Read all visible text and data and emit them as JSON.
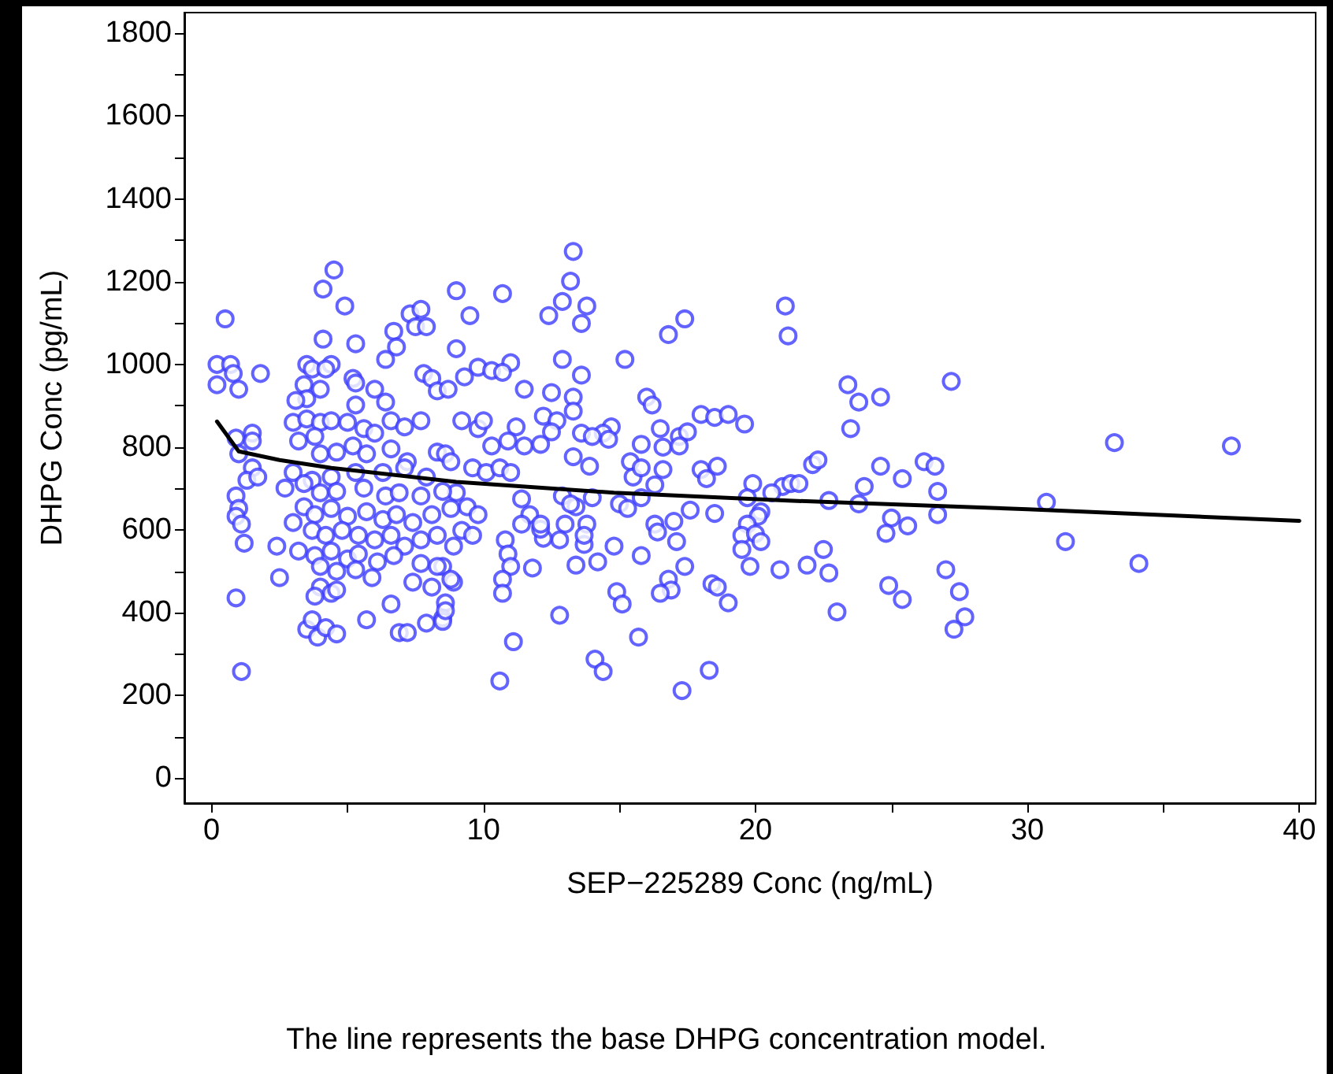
{
  "chart_data": {
    "type": "scatter",
    "xlabel": "SEP−225289 Conc (ng/mL)",
    "ylabel": "DHPG Conc (pg/mL)",
    "annotations": [
      "The line represents the base DHPG concentration model."
    ],
    "xlim": [
      -1,
      40.6
    ],
    "ylim": [
      -60,
      1850
    ],
    "xticks": [
      0,
      {
        "value": 5,
        "label": null
      },
      10,
      {
        "value": 15,
        "label": null
      },
      20,
      {
        "value": 25,
        "label": null
      },
      30,
      {
        "value": 35,
        "label": null
      },
      40
    ],
    "yticks": [
      0,
      {
        "value": 100,
        "label": null
      },
      200,
      {
        "value": 300,
        "label": null
      },
      400,
      {
        "value": 500,
        "label": null
      },
      600,
      {
        "value": 700,
        "label": null
      },
      800,
      {
        "value": 900,
        "label": null
      },
      1000,
      {
        "value": 1100,
        "label": null
      },
      1200,
      {
        "value": 1300,
        "label": null
      },
      1400,
      {
        "value": 1500,
        "label": null
      },
      1600,
      {
        "value": 1700,
        "label": null
      },
      1800
    ],
    "marker": "circle",
    "series": [
      {
        "color": "#3c3cff",
        "x": [
          21.1,
          21.2,
          23.4,
          23.8,
          24.6,
          23.5,
          27.2,
          33.2,
          37.5,
          30.7,
          31.4,
          34.1,
          24.6,
          25.4,
          26.2,
          26.6,
          26.7,
          26.7,
          24.0,
          23.8,
          25.0,
          24.8,
          25.6,
          22.7,
          22.1,
          22.3,
          21.0,
          21.3,
          21.6,
          22.5,
          21.9,
          22.7,
          20.9,
          23.0,
          24.9,
          25.4,
          27.0,
          27.5,
          27.7,
          27.3,
          13.3,
          13.2,
          12.9,
          13.8,
          12.4,
          13.6,
          10.7,
          9.0,
          9.5,
          9.0,
          17.4,
          16.8,
          12.9,
          15.2,
          13.6,
          11.0,
          9.8,
          10.3,
          10.7,
          9.3,
          11.5,
          12.5,
          13.3,
          13.3,
          16.0,
          16.2,
          18.0,
          18.5,
          19.0,
          19.6,
          16.5,
          17.2,
          17.5,
          14.7,
          14.4,
          14.6,
          13.6,
          14.0,
          12.2,
          12.7,
          12.5,
          11.2,
          15.8,
          16.6,
          17.2,
          13.3,
          13.9,
          15.4,
          15.5,
          15.8,
          16.6,
          18.0,
          18.2,
          18.6,
          19.9,
          16.3,
          15.0,
          15.3,
          15.8,
          12.9,
          13.4,
          13.2,
          14.0,
          17.6,
          18.5,
          19.7,
          20.2,
          20.6,
          20.1,
          19.7,
          19.5,
          20.0,
          20.2,
          19.5,
          16.3,
          16.4,
          17.0,
          17.1,
          15.8,
          17.4,
          19.8,
          14.8,
          14.2,
          13.4,
          13.0,
          13.8,
          13.7,
          13.7,
          11.8,
          12.8,
          12.2,
          12.1,
          10.8,
          10.9,
          11.0,
          10.7,
          10.7,
          16.8,
          16.9,
          16.5,
          14.9,
          15.1,
          18.4,
          18.6,
          19.0,
          12.8,
          11.1,
          15.7,
          14.1,
          14.4,
          10.6,
          17.3,
          18.3,
          9.2,
          9.8,
          10.0,
          10.3,
          10.9,
          11.5,
          12.1,
          9.6,
          10.1,
          10.6,
          11.0,
          9.0,
          9.4,
          9.8,
          9.2,
          9.6,
          11.4,
          11.7,
          12.1,
          11.4,
          8.9,
          8.5,
          8.9,
          8.6,
          8.5,
          0.5,
          0.2,
          0.7,
          0.2,
          0.8,
          1.0,
          1.8,
          0.9,
          1.5,
          1.5,
          1.0,
          1.5,
          1.3,
          1.7,
          0.9,
          1.0,
          0.9,
          1.1,
          1.2,
          0.9,
          1.1,
          4.5,
          4.1,
          4.9,
          4.1,
          5.3,
          6.7,
          6.8,
          7.3,
          7.7,
          7.5,
          7.9,
          6.4,
          3.5,
          3.7,
          4.4,
          4.2,
          3.4,
          3.5,
          4.0,
          3.1,
          5.2,
          5.3,
          5.3,
          6.0,
          6.4,
          7.8,
          8.1,
          8.3,
          8.7,
          3.0,
          3.5,
          4.0,
          3.8,
          4.4,
          5.0,
          5.6,
          6.0,
          6.6,
          7.1,
          7.7,
          3.2,
          4.0,
          4.6,
          5.2,
          5.7,
          6.6,
          7.2,
          8.3,
          8.6,
          8.8,
          3.0,
          3.7,
          4.4,
          5.3,
          6.3,
          7.1,
          7.9,
          2.7,
          3.4,
          4.0,
          4.6,
          5.6,
          6.4,
          6.9,
          7.7,
          8.5,
          3.4,
          3.8,
          4.4,
          5.0,
          5.7,
          6.3,
          6.8,
          7.4,
          8.1,
          8.8,
          3.0,
          3.7,
          4.2,
          4.8,
          5.4,
          6.0,
          6.6,
          7.1,
          7.7,
          8.3,
          2.4,
          3.2,
          3.8,
          4.4,
          5.0,
          5.4,
          6.1,
          6.7,
          4.0,
          4.6,
          5.3,
          5.9,
          7.7,
          8.3,
          8.8,
          2.5,
          4.0,
          4.4,
          6.6,
          7.4,
          8.1,
          3.8,
          4.6,
          3.5,
          3.7,
          3.9,
          4.2,
          4.6,
          5.7,
          6.9,
          7.2,
          7.9,
          8.5,
          8.6
        ],
        "values": [
          1141,
          1069,
          951,
          909,
          921,
          845,
          959,
          811,
          803,
          667,
          572,
          519,
          754,
          724,
          765,
          754,
          693,
          637,
          705,
          663,
          629,
          592,
          610,
          671,
          758,
          769,
          705,
          712,
          712,
          553,
          515,
          496,
          504,
          402,
          466,
          432,
          504,
          451,
          390,
          360,
          1273,
          1201,
          1152,
          1141,
          1118,
          1099,
          1171,
          1178,
          1118,
          1038,
          1110,
          1072,
          1012,
          1012,
          974,
          1004,
          993,
          985,
          981,
          970,
          940,
          932,
          921,
          887,
          921,
          902,
          879,
          872,
          879,
          856,
          845,
          826,
          837,
          849,
          834,
          819,
          834,
          826,
          875,
          864,
          837,
          849,
          807,
          800,
          803,
          777,
          754,
          765,
          728,
          750,
          746,
          746,
          724,
          754,
          712,
          709,
          663,
          652,
          678,
          682,
          656,
          663,
          678,
          648,
          640,
          678,
          644,
          690,
          633,
          614,
          587,
          591,
          572,
          553,
          614,
          595,
          621,
          572,
          538,
          512,
          512,
          561,
          523,
          515,
          614,
          614,
          565,
          587,
          508,
          576,
          580,
          602,
          576,
          542,
          512,
          481,
          447,
          481,
          455,
          447,
          451,
          421,
          470,
          462,
          424,
          394,
          330,
          341,
          288,
          258,
          235,
          212,
          261,
          864,
          845,
          864,
          803,
          815,
          803,
          807,
          750,
          739,
          750,
          739,
          690,
          656,
          637,
          599,
          587,
          675,
          637,
          614,
          614,
          561,
          512,
          474,
          424,
          387,
          1110,
          1000,
          1000,
          951,
          978,
          940,
          978,
          822,
          834,
          815,
          784,
          750,
          720,
          728,
          682,
          652,
          633,
          614,
          568,
          436,
          258,
          1228,
          1182,
          1141,
          1061,
          1050,
          1080,
          1042,
          1122,
          1133,
          1091,
          1091,
          1012,
          1000,
          989,
          1000,
          989,
          951,
          917,
          940,
          913,
          966,
          955,
          902,
          940,
          909,
          978,
          966,
          936,
          940,
          860,
          868,
          860,
          826,
          864,
          860,
          845,
          834,
          864,
          849,
          864,
          815,
          784,
          788,
          803,
          784,
          796,
          765,
          788,
          784,
          765,
          739,
          720,
          728,
          739,
          739,
          750,
          728,
          701,
          712,
          690,
          693,
          701,
          682,
          690,
          682,
          693,
          656,
          637,
          652,
          633,
          644,
          625,
          637,
          618,
          637,
          652,
          618,
          599,
          587,
          599,
          587,
          576,
          587,
          561,
          576,
          587,
          561,
          549,
          538,
          549,
          530,
          542,
          523,
          538,
          512,
          500,
          504,
          485,
          519,
          512,
          481,
          485,
          462,
          447,
          421,
          474,
          462,
          440,
          455,
          360,
          383,
          341,
          364,
          349,
          383,
          352,
          352,
          375,
          379,
          405
        ]
      },
      {
        "type": "line",
        "color": "#000000",
        "marker": "none",
        "line_style": "solid",
        "x": [
          0.2,
          1,
          2.5,
          4.4,
          9,
          14.8,
          21.2,
          30,
          40
        ],
        "values": [
          862,
          790,
          769,
          750,
          716,
          690,
          671,
          650,
          622
        ]
      }
    ]
  }
}
